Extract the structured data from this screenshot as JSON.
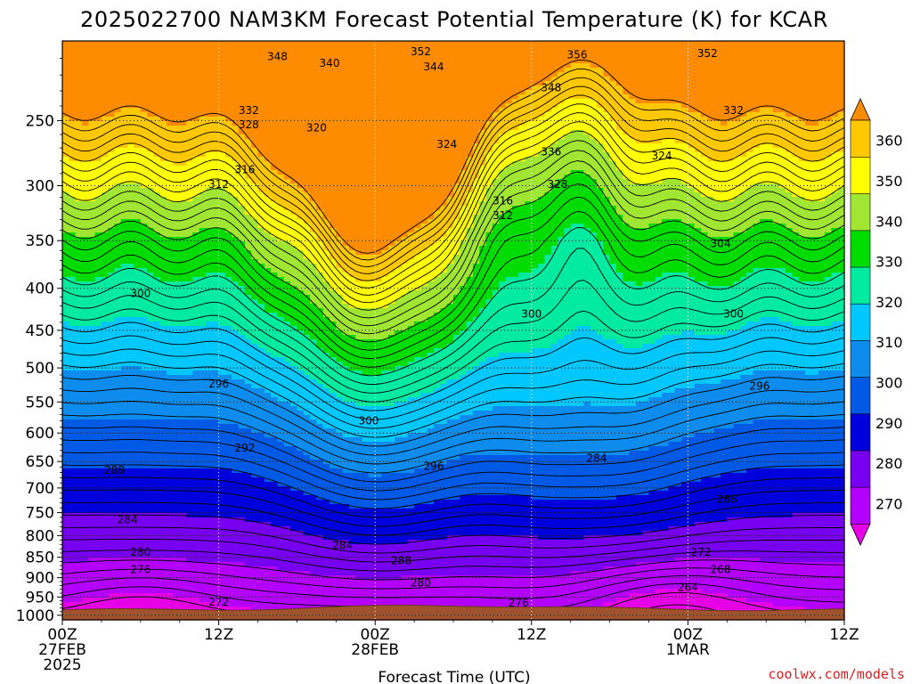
{
  "chart_data": {
    "type": "heatmap",
    "title": "2025022700 NAM3KM Forecast Potential Temperature (K) for KCAR",
    "xlabel": "Forecast Time (UTC)",
    "ylabel": "",
    "credit": "coolwx.com/models",
    "x_ticks": [
      {
        "hour": 0,
        "l1": "00Z",
        "l2": "27FEB",
        "l3": "2025"
      },
      {
        "hour": 12,
        "l1": "12Z",
        "l2": "",
        "l3": ""
      },
      {
        "hour": 24,
        "l1": "00Z",
        "l2": "28FEB",
        "l3": ""
      },
      {
        "hour": 36,
        "l1": "12Z",
        "l2": "",
        "l3": ""
      },
      {
        "hour": 48,
        "l1": "00Z",
        "l2": "1MAR",
        "l3": ""
      },
      {
        "hour": 60,
        "l1": "12Z",
        "l2": "",
        "l3": ""
      }
    ],
    "xlim": [
      0,
      60
    ],
    "y_ticks": [
      250,
      300,
      350,
      400,
      450,
      500,
      550,
      600,
      650,
      700,
      750,
      800,
      850,
      900,
      950,
      1000
    ],
    "ylim": [
      200,
      1013
    ],
    "y_scale": "log-pressure",
    "colorbar": {
      "ticks": [
        270,
        280,
        290,
        300,
        310,
        320,
        330,
        340,
        350,
        360
      ],
      "colors": [
        "#e600e6",
        "#b400ff",
        "#7800f0",
        "#0000dc",
        "#005ae6",
        "#0d8ced",
        "#00c8ff",
        "#00eba0",
        "#00dc00",
        "#a0e632",
        "#ffff00",
        "#ffc800",
        "#ff8c00"
      ],
      "range": [
        265,
        365
      ],
      "extend": "both"
    },
    "contour_interval": 2,
    "contour_levels": [
      262,
      264,
      266,
      268,
      270,
      272,
      274,
      276,
      278,
      280,
      282,
      284,
      286,
      288,
      290,
      292,
      294,
      296,
      298,
      300,
      302,
      304,
      306,
      308,
      310,
      312,
      314,
      316,
      318,
      320,
      322,
      324,
      326,
      328,
      330,
      332,
      334,
      336,
      338,
      340,
      342,
      344,
      346,
      348,
      350,
      352,
      354,
      356,
      358
    ],
    "contour_labels": [
      {
        "v": "352",
        "t": 27.5,
        "p": 206
      },
      {
        "v": "356",
        "t": 39.5,
        "p": 208
      },
      {
        "v": "352",
        "t": 49.5,
        "p": 207
      },
      {
        "v": "348",
        "t": 16.5,
        "p": 209
      },
      {
        "v": "340",
        "t": 20.5,
        "p": 213
      },
      {
        "v": "344",
        "t": 28.5,
        "p": 215
      },
      {
        "v": "348",
        "t": 37.5,
        "p": 228
      },
      {
        "v": "332",
        "t": 14.3,
        "p": 243
      },
      {
        "v": "328",
        "t": 14.3,
        "p": 253
      },
      {
        "v": "320",
        "t": 19.5,
        "p": 255
      },
      {
        "v": "332",
        "t": 51.5,
        "p": 243
      },
      {
        "v": "324",
        "t": 29.5,
        "p": 267
      },
      {
        "v": "336",
        "t": 37.5,
        "p": 273
      },
      {
        "v": "324",
        "t": 46.0,
        "p": 276
      },
      {
        "v": "316",
        "t": 14.0,
        "p": 287
      },
      {
        "v": "312",
        "t": 12.0,
        "p": 299
      },
      {
        "v": "328",
        "t": 38.0,
        "p": 299
      },
      {
        "v": "316",
        "t": 33.8,
        "p": 313
      },
      {
        "v": "312",
        "t": 33.8,
        "p": 326
      },
      {
        "v": "304",
        "t": 50.5,
        "p": 353
      },
      {
        "v": "300",
        "t": 6.0,
        "p": 406
      },
      {
        "v": "300",
        "t": 36.0,
        "p": 430
      },
      {
        "v": "300",
        "t": 51.5,
        "p": 430
      },
      {
        "v": "296",
        "t": 12.0,
        "p": 523
      },
      {
        "v": "296",
        "t": 53.5,
        "p": 526
      },
      {
        "v": "300",
        "t": 23.5,
        "p": 580
      },
      {
        "v": "292",
        "t": 14.0,
        "p": 626
      },
      {
        "v": "284",
        "t": 41.0,
        "p": 644
      },
      {
        "v": "296",
        "t": 28.5,
        "p": 659
      },
      {
        "v": "288",
        "t": 4.0,
        "p": 666
      },
      {
        "v": "288",
        "t": 51.0,
        "p": 722
      },
      {
        "v": "284",
        "t": 5.0,
        "p": 765
      },
      {
        "v": "284",
        "t": 21.5,
        "p": 822
      },
      {
        "v": "272",
        "t": 49.0,
        "p": 838
      },
      {
        "v": "280",
        "t": 6.0,
        "p": 838
      },
      {
        "v": "288",
        "t": 26.0,
        "p": 858
      },
      {
        "v": "276",
        "t": 6.0,
        "p": 880
      },
      {
        "v": "268",
        "t": 50.5,
        "p": 880
      },
      {
        "v": "280",
        "t": 27.5,
        "p": 913
      },
      {
        "v": "264",
        "t": 48.0,
        "p": 925
      },
      {
        "v": "272",
        "t": 12.0,
        "p": 964
      },
      {
        "v": "276",
        "t": 35.0,
        "p": 966
      }
    ],
    "grid": true,
    "ground": "brown surface below ~975 hPa"
  }
}
